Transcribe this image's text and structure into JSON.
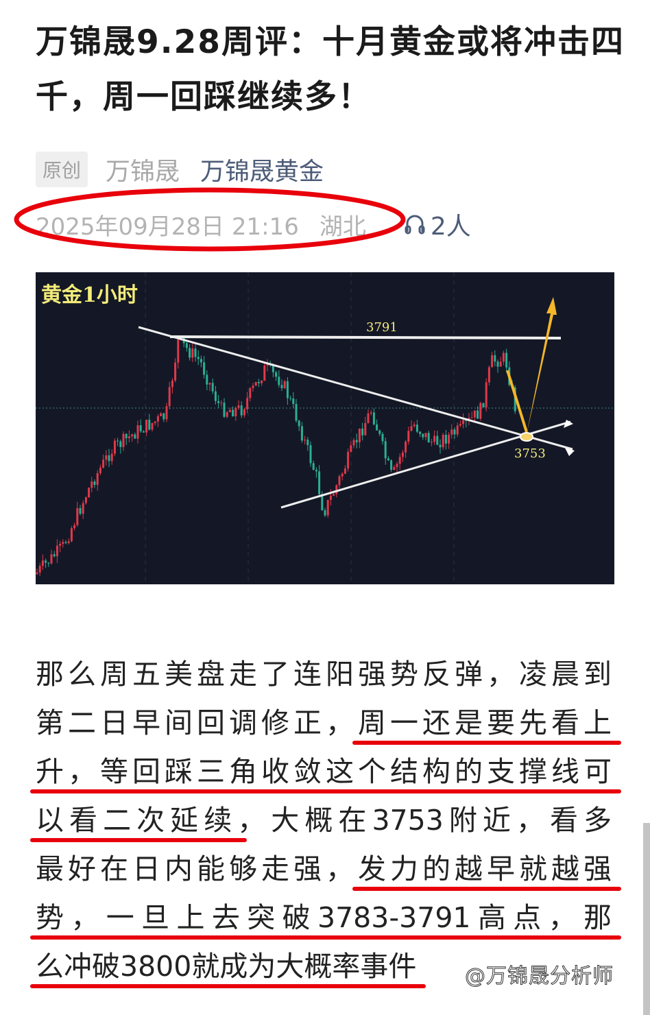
{
  "article": {
    "title": "万锦晟9.28周评：十月黄金或将冲击四千，周一回踩继续多！",
    "badge": "原创",
    "author": "万锦晟",
    "account": "万锦晟黄金",
    "datetime": "2025年09月28日 21:16",
    "location": "湖北",
    "listeners": "2人",
    "listen_icon": "headphones-icon",
    "highlight_color": "#e8000b"
  },
  "chart_image": {
    "label": "黄金1小时",
    "resistance_label": "3791",
    "support_label": "3753",
    "background": "#141826",
    "up_color": "#e0394b",
    "down_color": "#2bae94",
    "arrow_color": "#f5b62a"
  },
  "paragraph": {
    "lines": [
      [
        {
          "t": "那么周五美盘走了连阳强势反弹，凌晨到",
          "u": false
        }
      ],
      [
        {
          "t": "第二日早间回调修正，",
          "u": false
        },
        {
          "t": "周一还是要先看上",
          "u": true
        }
      ],
      [
        {
          "t": "升，等回踩三角收敛这个结构的支撑线可",
          "u": true
        }
      ],
      [
        {
          "t": "以看二次延续",
          "u": true
        },
        {
          "t": "，大概在3753附近，看多",
          "u": false
        }
      ],
      [
        {
          "t": "最好在日内能够走强，",
          "u": false
        },
        {
          "t": "发力的越早就越强",
          "u": true
        }
      ],
      [
        {
          "t": "势，一旦上去突破3783-3791高点，那",
          "u": true
        }
      ],
      [
        {
          "t": "么冲破3800就成为大概率事件",
          "u": true
        }
      ]
    ]
  },
  "watermark": "@万锦晟分析师"
}
